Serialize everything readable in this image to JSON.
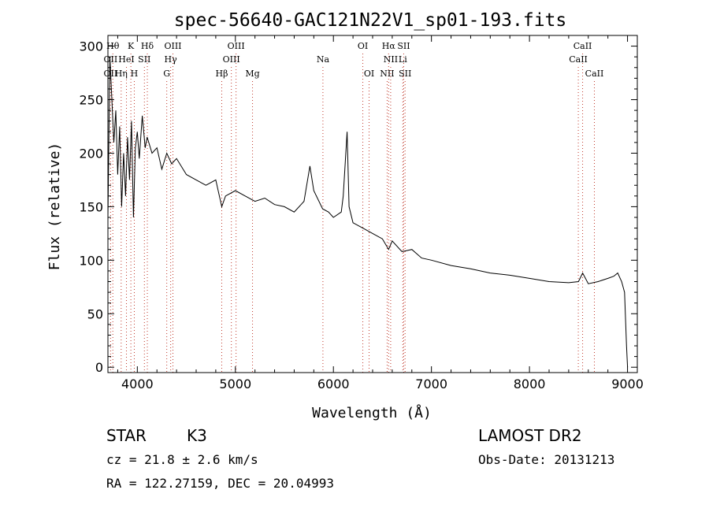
{
  "chart_data": {
    "type": "line",
    "title": "spec-56640-GAC121N22V1_sp01-193.fits",
    "xlabel": "Wavelength (Å)",
    "ylabel": "Flux (relative)",
    "xlim": [
      3700,
      9100
    ],
    "ylim": [
      -5,
      310
    ],
    "xticks": [
      4000,
      5000,
      6000,
      7000,
      8000,
      9000
    ],
    "yticks": [
      0,
      50,
      100,
      150,
      200,
      250,
      300
    ],
    "grid": false,
    "series": [
      {
        "x": [
          3700,
          3720,
          3740,
          3760,
          3780,
          3800,
          3820,
          3840,
          3860,
          3880,
          3900,
          3920,
          3940,
          3960,
          3980,
          4000,
          4020,
          4050,
          4080,
          4100,
          4150,
          4200,
          4250,
          4300,
          4350,
          4400,
          4500,
          4600,
          4700,
          4800,
          4861,
          4900,
          5000,
          5100,
          5200,
          5300,
          5400,
          5500,
          5600,
          5700,
          5760,
          5800,
          5890,
          5950,
          6000,
          6080,
          6100,
          6140,
          6160,
          6200,
          6300,
          6400,
          6500,
          6563,
          6600,
          6700,
          6800,
          6900,
          7000,
          7200,
          7400,
          7600,
          7800,
          8000,
          8200,
          8400,
          8500,
          8542,
          8600,
          8700,
          8800,
          8860,
          8900,
          8940,
          8970,
          8990,
          9000
        ],
        "y": [
          140,
          290,
          250,
          210,
          240,
          180,
          225,
          150,
          200,
          160,
          215,
          175,
          230,
          140,
          205,
          220,
          195,
          235,
          205,
          215,
          200,
          205,
          185,
          200,
          190,
          195,
          180,
          175,
          170,
          175,
          150,
          160,
          165,
          160,
          155,
          158,
          152,
          150,
          145,
          155,
          188,
          165,
          148,
          145,
          140,
          145,
          160,
          220,
          150,
          135,
          130,
          125,
          120,
          110,
          118,
          108,
          110,
          102,
          100,
          95,
          92,
          88,
          86,
          83,
          80,
          79,
          80,
          88,
          78,
          80,
          83,
          85,
          88,
          80,
          70,
          20,
          0
        ]
      }
    ],
    "spectral_lines": [
      {
        "label": "OII",
        "wl": 3727,
        "row": 2
      },
      {
        "label": "Hθ",
        "wl": 3750,
        "row": 1
      },
      {
        "label": "OII",
        "wl": 3727,
        "row": 3
      },
      {
        "label": "Hη",
        "wl": 3835,
        "row": 3
      },
      {
        "label": "HeI",
        "wl": 3889,
        "row": 2
      },
      {
        "label": "K",
        "wl": 3934,
        "row": 1
      },
      {
        "label": "SII",
        "wl": 4072,
        "row": 2
      },
      {
        "label": "H",
        "wl": 3969,
        "row": 3
      },
      {
        "label": "Hδ",
        "wl": 4102,
        "row": 1
      },
      {
        "label": "OIII",
        "wl": 4363,
        "row": 1
      },
      {
        "label": "Hγ",
        "wl": 4340,
        "row": 2
      },
      {
        "label": "G",
        "wl": 4300,
        "row": 3
      },
      {
        "label": "OIII",
        "wl": 5007,
        "row": 1
      },
      {
        "label": "OIII",
        "wl": 4959,
        "row": 2
      },
      {
        "label": "Hβ",
        "wl": 4861,
        "row": 3
      },
      {
        "label": "Mg",
        "wl": 5175,
        "row": 3
      },
      {
        "label": "Na",
        "wl": 5893,
        "row": 2
      },
      {
        "label": "OI",
        "wl": 6300,
        "row": 1
      },
      {
        "label": "OI",
        "wl": 6364,
        "row": 3
      },
      {
        "label": "Hα",
        "wl": 6563,
        "row": 1
      },
      {
        "label": "SII",
        "wl": 6717,
        "row": 1
      },
      {
        "label": "NII",
        "wl": 6584,
        "row": 2
      },
      {
        "label": "Li",
        "wl": 6708,
        "row": 2
      },
      {
        "label": "NII",
        "wl": 6548,
        "row": 3
      },
      {
        "label": "SII",
        "wl": 6731,
        "row": 3
      },
      {
        "label": "CaII",
        "wl": 8542,
        "row": 1
      },
      {
        "label": "CaII",
        "wl": 8498,
        "row": 2
      },
      {
        "label": "CaII",
        "wl": 8662,
        "row": 3
      }
    ]
  },
  "info": {
    "class_label": "STAR",
    "subclass": "K3",
    "survey": "LAMOST DR2",
    "cz": "cz = 21.8 ± 2.6 km/s",
    "obs_date": "Obs-Date: 20131213",
    "coords": "RA = 122.27159, DEC =  20.04993"
  }
}
